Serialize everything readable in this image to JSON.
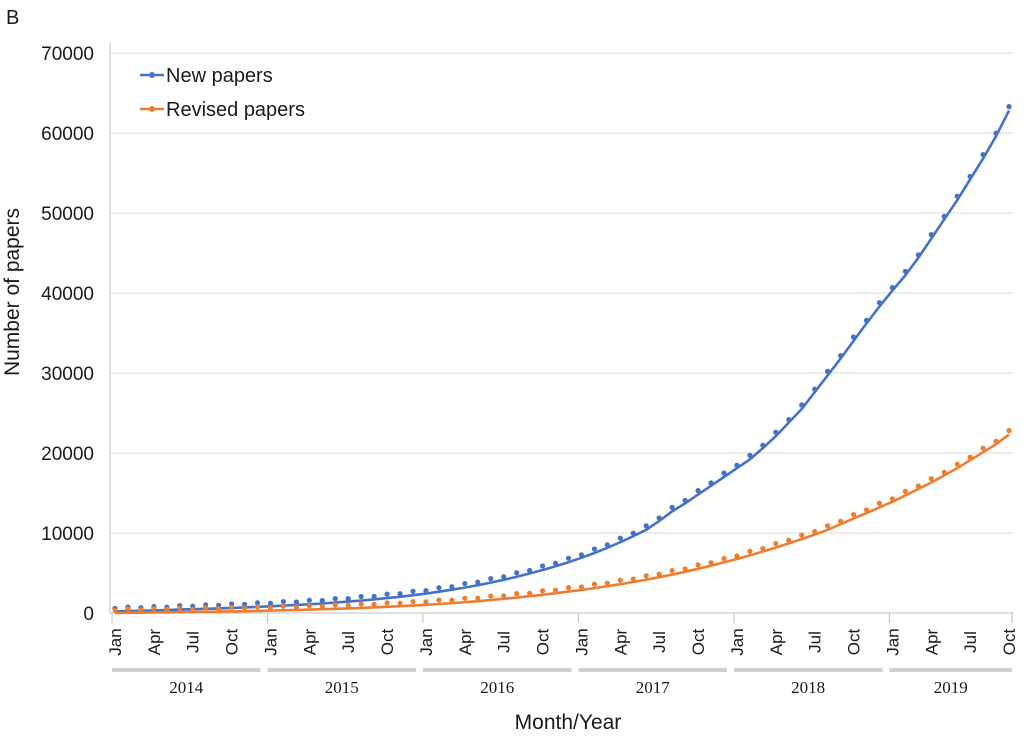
{
  "panel_label": "B",
  "chart_data": {
    "type": "line",
    "xlabel": "Month/Year",
    "ylabel": "Number of papers",
    "ylim": [
      0,
      70000
    ],
    "yticks": [
      0,
      10000,
      20000,
      30000,
      40000,
      50000,
      60000,
      70000
    ],
    "grid": "horizontal",
    "legend_position": "top-left",
    "x_start": "Jan 2014",
    "x_end": "Oct 2019",
    "month_tick_labels": [
      "Jan",
      "Apr",
      "Jul",
      "Oct"
    ],
    "year_labels": [
      "2014",
      "2015",
      "2016",
      "2017",
      "2018",
      "2019"
    ],
    "series": [
      {
        "name": "New papers",
        "color": "#4472c4",
        "values": [
          200,
          240,
          280,
          320,
          370,
          420,
          470,
          520,
          580,
          640,
          700,
          770,
          840,
          920,
          1000,
          1090,
          1190,
          1300,
          1420,
          1560,
          1700,
          1860,
          2030,
          2220,
          2430,
          2660,
          2910,
          3180,
          3480,
          3800,
          4150,
          4530,
          4940,
          5380,
          5850,
          6350,
          6900,
          7500,
          8150,
          8850,
          9600,
          10400,
          11500,
          12700,
          13700,
          14800,
          15900,
          17000,
          18100,
          19200,
          20600,
          22100,
          23800,
          25500,
          27600,
          29700,
          31800,
          34000,
          36200,
          38300,
          40300,
          42200,
          44400,
          46800,
          49200,
          51600,
          54200,
          56800,
          59600,
          62800
        ]
      },
      {
        "name": "Revised papers",
        "color": "#ed7d31",
        "values": [
          0,
          20,
          40,
          60,
          80,
          100,
          120,
          140,
          170,
          200,
          230,
          260,
          300,
          340,
          380,
          420,
          470,
          520,
          580,
          640,
          700,
          770,
          850,
          930,
          1020,
          1120,
          1230,
          1350,
          1480,
          1620,
          1770,
          1930,
          2100,
          2280,
          2470,
          2670,
          2880,
          3110,
          3350,
          3600,
          3870,
          4160,
          4470,
          4800,
          5150,
          5520,
          5910,
          6320,
          6750,
          7200,
          7680,
          8180,
          8700,
          9240,
          9800,
          10400,
          11100,
          11800,
          12500,
          13200,
          13900,
          14700,
          15500,
          16300,
          17200,
          18100,
          19100,
          20100,
          21100,
          22300
        ]
      }
    ]
  }
}
